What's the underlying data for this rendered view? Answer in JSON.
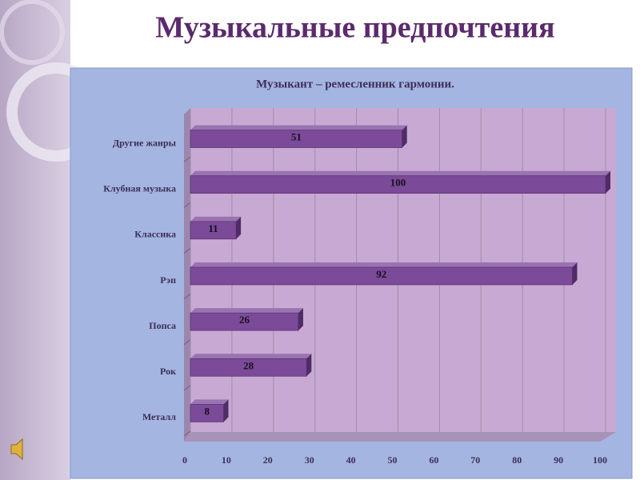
{
  "slide_title": "Музыкальные предпочтения",
  "chart_data": {
    "type": "bar",
    "orientation": "horizontal",
    "title": "Музыкант – ремесленник гармонии.",
    "categories": [
      "Другие жанры",
      "Клубная музыка",
      "Классика",
      "Рэп",
      "Попса",
      "Рок",
      "Металл"
    ],
    "values": [
      51,
      100,
      11,
      92,
      26,
      28,
      8
    ],
    "color": "#7b4a98",
    "xlim": [
      0,
      100
    ],
    "xticks": [
      0,
      10,
      20,
      30,
      40,
      50,
      60,
      70,
      80,
      90,
      100
    ],
    "grid": true
  }
}
